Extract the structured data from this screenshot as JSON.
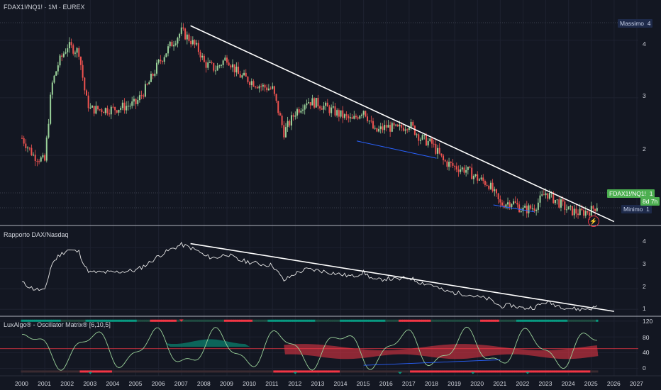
{
  "main": {
    "title": "FDAX1!/NQ1! · 1M · EUREX",
    "y_ticks": [
      "4",
      "3",
      "2"
    ],
    "max_label": "Massimo",
    "max_value": "4",
    "min_label": "Minimo",
    "min_value": "1",
    "price_label": "FDAX1!/NQ1!",
    "price_value": "1",
    "countdown": "8d 7h"
  },
  "ratio_pane": {
    "title": "Rapporto DAX/Nasdaq",
    "y_ticks": [
      "4",
      "3",
      "2",
      "1"
    ]
  },
  "osc_pane": {
    "title": "LuxAlgo® - Oscillator Matrix® [6,10,5]",
    "y_ticks": [
      "120",
      "80",
      "40",
      "0"
    ]
  },
  "x_axis": {
    "years": [
      "2000",
      "2001",
      "2002",
      "2003",
      "2004",
      "2005",
      "2006",
      "2007",
      "2008",
      "2009",
      "2010",
      "2011",
      "2012",
      "2013",
      "2014",
      "2015",
      "2016",
      "2017",
      "2018",
      "2019",
      "2020",
      "2021",
      "2022",
      "2023",
      "2024",
      "2025",
      "2026",
      "2027"
    ]
  },
  "colors": {
    "background": "#131722",
    "up": "#26a69a",
    "up_light": "#9ad29a",
    "down": "#ef5350",
    "trendline": "#ffffff",
    "support": "#2962ff",
    "osc_green": "#089981",
    "osc_red": "#f23645"
  },
  "chart_data": {
    "type": "line",
    "title": "FDAX1!/NQ1!",
    "x_range": [
      2000,
      2027
    ],
    "ratio_ylim": [
      0.8,
      4.6
    ],
    "series": [
      {
        "name": "Rapporto DAX/Nasdaq",
        "x": [
          2000,
          2000.5,
          2001,
          2001.3,
          2001.6,
          2002,
          2002.5,
          2002.8,
          2003,
          2003.5,
          2004,
          2004.5,
          2005,
          2005.5,
          2006,
          2006.5,
          2007,
          2007.4,
          2007.8,
          2008,
          2008.5,
          2009,
          2009.5,
          2010,
          2010.5,
          2011,
          2011.5,
          2011.8,
          2012,
          2012.5,
          2013,
          2013.5,
          2014,
          2014.5,
          2015,
          2015.5,
          2016,
          2016.5,
          2017,
          2017.5,
          2018,
          2018.5,
          2019,
          2019.5,
          2020,
          2020.5,
          2021,
          2021.5,
          2022,
          2022.5,
          2023,
          2023.5,
          2024,
          2024.5,
          2025,
          2025.3
        ],
        "values": [
          2.3,
          2.0,
          1.9,
          3.2,
          3.6,
          3.9,
          3.8,
          3.0,
          2.8,
          2.8,
          2.8,
          2.85,
          2.9,
          3.2,
          3.6,
          3.9,
          4.15,
          4.0,
          3.8,
          3.6,
          3.5,
          3.7,
          3.4,
          3.3,
          3.2,
          3.15,
          2.4,
          2.6,
          2.75,
          2.95,
          2.9,
          2.8,
          2.7,
          2.6,
          2.8,
          2.4,
          2.5,
          2.45,
          2.55,
          2.3,
          2.2,
          1.9,
          1.8,
          1.75,
          1.6,
          1.5,
          1.15,
          1.2,
          1.05,
          1.1,
          1.35,
          1.2,
          1.05,
          1.0,
          1.05,
          1.15
        ]
      }
    ],
    "trendline": {
      "x": [
        2007.4,
        2026.0
      ],
      "values": [
        4.2,
        0.9
      ]
    }
  }
}
